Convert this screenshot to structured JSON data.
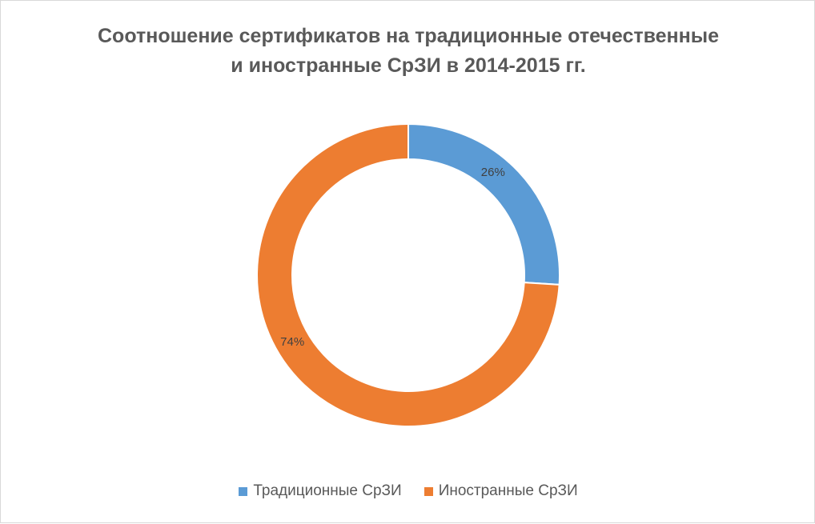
{
  "chart_data": {
    "type": "pie",
    "variant": "doughnut",
    "title": "Соотношение сертификатов на традиционные отечественные и иностранные СрЗИ в 2014-2015 гг.",
    "title_lines": [
      "Соотношение сертификатов на традиционные отечественные",
      "и иностранные СрЗИ в 2014-2015 гг."
    ],
    "categories": [
      "Традиционные  СрЗИ",
      "Иностранные СрЗИ"
    ],
    "values": [
      26,
      74
    ],
    "data_labels": [
      "26%",
      "74%"
    ],
    "colors": [
      "#5B9BD5",
      "#ED7D31"
    ],
    "legend_position": "bottom"
  }
}
